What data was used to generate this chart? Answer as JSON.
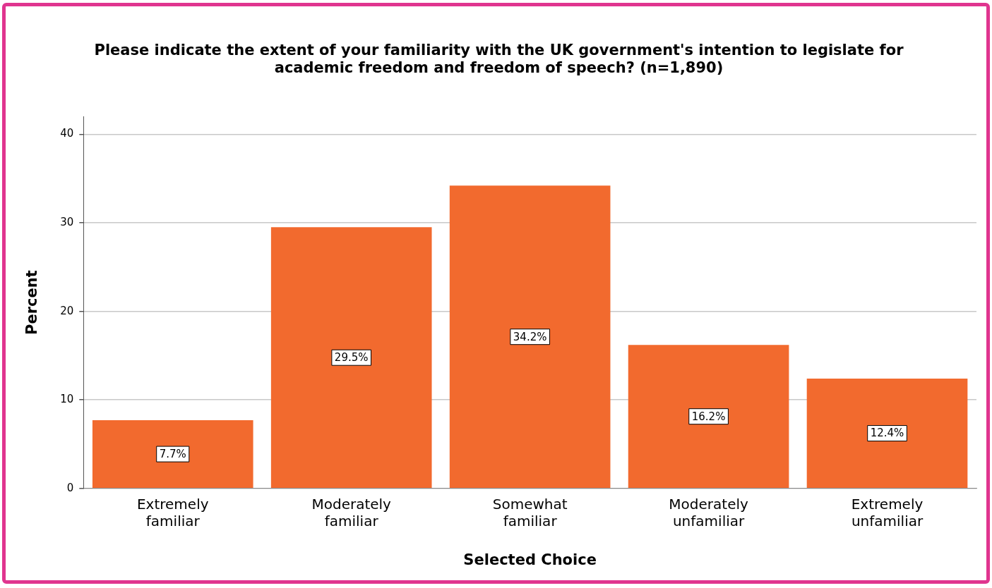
{
  "chart_data": {
    "type": "bar",
    "title": "Please indicate the extent of your familiarity with the UK government's intention to legislate for academic freedom and freedom of speech? (n=1,890)",
    "xlabel": "Selected Choice",
    "ylabel": "Percent",
    "categories": [
      "Extremely familiar",
      "Moderately familiar",
      "Somewhat familiar",
      "Moderately unfamiliar",
      "Extremely unfamiliar"
    ],
    "values": [
      7.7,
      29.5,
      34.2,
      16.2,
      12.4
    ],
    "value_labels": [
      "7.7%",
      "29.5%",
      "34.2%",
      "16.2%",
      "12.4%"
    ],
    "color": "#f26a2e",
    "ylim": [
      0,
      42
    ],
    "yticks": [
      0,
      10,
      20,
      30,
      40
    ],
    "grid": "y",
    "legend": false
  }
}
